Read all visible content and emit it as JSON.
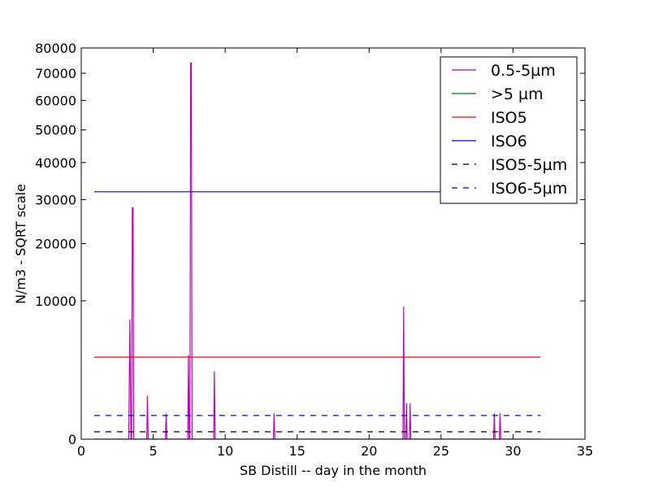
{
  "chart_data": {
    "type": "line",
    "xlabel": "SB Distill -- day in the month",
    "ylabel": "N/m3 - SQRT scale",
    "xlim": [
      0,
      35
    ],
    "ylim": [
      0,
      80000
    ],
    "y_scale": "sqrt",
    "grid": false,
    "legend_position": "top-right",
    "x_ticks": [
      0,
      5,
      10,
      15,
      20,
      25,
      30,
      35
    ],
    "y_ticks": [
      0,
      10000,
      20000,
      30000,
      40000,
      50000,
      60000,
      70000,
      80000
    ],
    "series": [
      {
        "name": "0.5-5µm",
        "color": "#bf00bf",
        "style": "solid",
        "x": [
          0.9,
          3.3,
          3.38,
          3.45,
          3.5,
          3.55,
          3.6,
          3.65,
          3.7,
          3.75,
          4.55,
          4.6,
          4.65,
          5.85,
          5.9,
          5.95,
          7.4,
          7.45,
          7.5,
          7.55,
          7.6,
          7.65,
          7.7,
          7.75,
          9.2,
          9.25,
          9.3,
          13.35,
          13.4,
          13.45,
          22.35,
          22.4,
          22.45,
          22.5,
          22.55,
          22.6,
          22.65,
          22.7,
          22.75,
          22.8,
          22.85,
          22.9,
          22.95,
          23.0,
          23.05,
          23.1,
          28.65,
          28.7,
          28.75,
          28.8,
          29.05,
          29.1,
          29.15,
          31.9
        ],
        "y": [
          0,
          0,
          7500,
          0,
          0,
          28000,
          28000,
          0,
          0,
          0,
          0,
          1000,
          0,
          0,
          340,
          0,
          0,
          3700,
          0,
          0,
          74000,
          74000,
          0,
          0,
          0,
          2400,
          0,
          0,
          350,
          0,
          0,
          9200,
          0,
          0,
          0,
          680,
          0,
          0,
          0,
          0,
          680,
          0,
          0,
          0,
          0,
          0,
          0,
          350,
          0,
          0,
          0,
          350,
          0,
          0
        ]
      },
      {
        "name": ">5 µm",
        "color": "#008000",
        "style": "solid",
        "x": [
          0.9,
          31.9
        ],
        "y": [
          0,
          0
        ]
      },
      {
        "name": "ISO5",
        "color": "#ff0000",
        "style": "solid",
        "x": [
          0.9,
          31.9
        ],
        "y": [
          3520,
          3520
        ]
      },
      {
        "name": "ISO6",
        "color": "#0000ff",
        "style": "solid",
        "x": [
          0.9,
          31.9
        ],
        "y": [
          32000,
          32000
        ]
      },
      {
        "name": "ISO5-5µm",
        "color": "#000000",
        "style": "dashed",
        "x": [
          0.9,
          31.9
        ],
        "y": [
          29,
          29
        ]
      },
      {
        "name": "ISO6-5µm",
        "color": "#0000ff",
        "style": "dashed",
        "x": [
          0.9,
          31.9
        ],
        "y": [
          293,
          293
        ]
      }
    ]
  }
}
